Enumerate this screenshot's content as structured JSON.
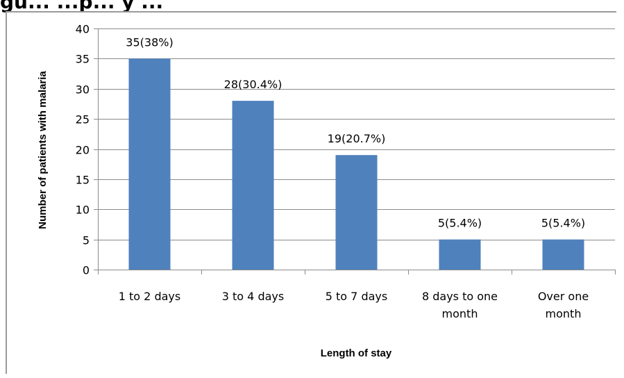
{
  "figure_heading": "gu... ...p... y ...",
  "colors": {
    "bar": "#4f81bd",
    "grid": "#8a8a8a",
    "axis": "#8a8a8a"
  },
  "chart_data": {
    "type": "bar",
    "title": "",
    "xlabel": "Length of stay",
    "ylabel": "Number of patients with malaria",
    "categories": [
      "1 to 2 days",
      "3 to 4 days",
      "5 to 7 days",
      "8 days to one month",
      "Over one month"
    ],
    "category_lines": [
      [
        "1 to 2 days"
      ],
      [
        "3 to 4 days"
      ],
      [
        "5 to 7 days"
      ],
      [
        "8 days to one",
        "month"
      ],
      [
        "Over one",
        "month"
      ]
    ],
    "values": [
      35,
      28,
      19,
      5,
      5
    ],
    "data_labels": [
      "35(38%)",
      "28(30.4%)",
      "19(20.7%)",
      "5(5.4%)",
      "5(5.4%)"
    ],
    "ylim": [
      0,
      40
    ],
    "yticks": [
      0,
      5,
      10,
      15,
      20,
      25,
      30,
      35,
      40
    ],
    "grid": true,
    "legend": "none"
  }
}
